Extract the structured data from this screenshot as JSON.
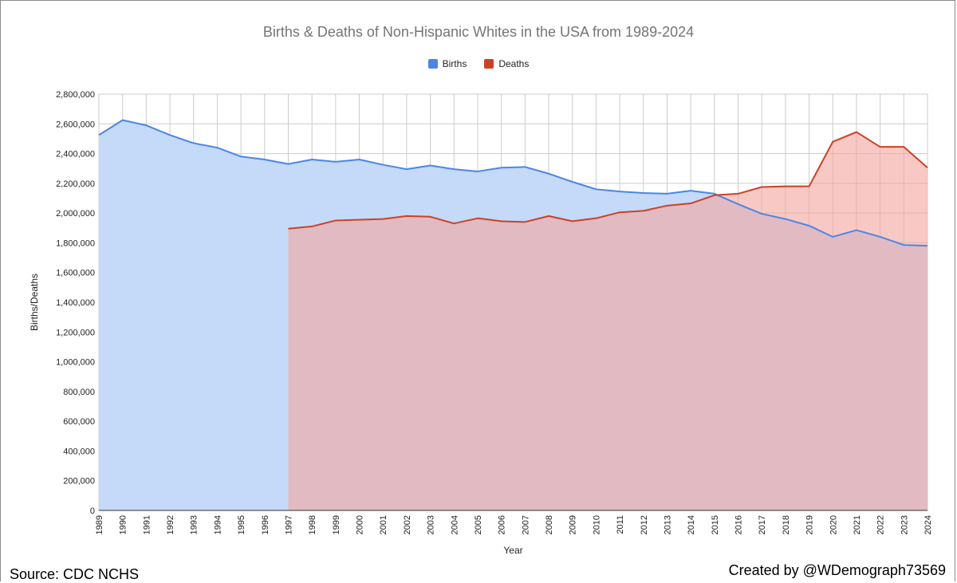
{
  "chart_data": {
    "type": "area",
    "title": "Births & Deaths of Non-Hispanic Whites in the USA from 1989-2024",
    "xlabel": "Year",
    "ylabel": "Births/Deaths",
    "ylim": [
      0,
      2800000
    ],
    "y_ticks": [
      0,
      200000,
      400000,
      600000,
      800000,
      1000000,
      1200000,
      1400000,
      1600000,
      1800000,
      2000000,
      2200000,
      2400000,
      2600000,
      2800000
    ],
    "y_tick_labels": [
      "0",
      "200,000",
      "400,000",
      "600,000",
      "800,000",
      "1,000,000",
      "1,200,000",
      "1,400,000",
      "1,600,000",
      "1,800,000",
      "2,000,000",
      "2,200,000",
      "2,400,000",
      "2,600,000",
      "2,800,000"
    ],
    "categories": [
      "1989",
      "1990",
      "1991",
      "1992",
      "1993",
      "1994",
      "1995",
      "1996",
      "1997",
      "1998",
      "1999",
      "2000",
      "2001",
      "2002",
      "2003",
      "2004",
      "2005",
      "2006",
      "2007",
      "2008",
      "2009",
      "2010",
      "2011",
      "2012",
      "2013",
      "2014",
      "2015",
      "2016",
      "2017",
      "2018",
      "2019",
      "2020",
      "2021",
      "2022",
      "2023",
      "2024"
    ],
    "grid": true,
    "legend_position": "top-center",
    "series": [
      {
        "name": "Births",
        "color": "#4a86e8",
        "fill": "#c5d9f9",
        "values": [
          2525000,
          2625000,
          2590000,
          2525000,
          2470000,
          2440000,
          2380000,
          2360000,
          2330000,
          2360000,
          2345000,
          2360000,
          2325000,
          2295000,
          2320000,
          2295000,
          2280000,
          2305000,
          2310000,
          2265000,
          2210000,
          2160000,
          2145000,
          2135000,
          2130000,
          2150000,
          2130000,
          2060000,
          1995000,
          1960000,
          1915000,
          1840000,
          1885000,
          1840000,
          1785000,
          1780000
        ]
      },
      {
        "name": "Deaths",
        "color": "#cc4125",
        "fill": "#f4a59c",
        "values": [
          null,
          null,
          null,
          null,
          null,
          null,
          null,
          null,
          1895000,
          1910000,
          1950000,
          1955000,
          1960000,
          1980000,
          1975000,
          1930000,
          1965000,
          1945000,
          1940000,
          1980000,
          1945000,
          1965000,
          2005000,
          2015000,
          2050000,
          2065000,
          2120000,
          2130000,
          2175000,
          2180000,
          2180000,
          2480000,
          2545000,
          2445000,
          2445000,
          2305000
        ]
      }
    ]
  },
  "footer": {
    "source": "Source: CDC NCHS",
    "credit": "Created by @WDemograph73569"
  }
}
